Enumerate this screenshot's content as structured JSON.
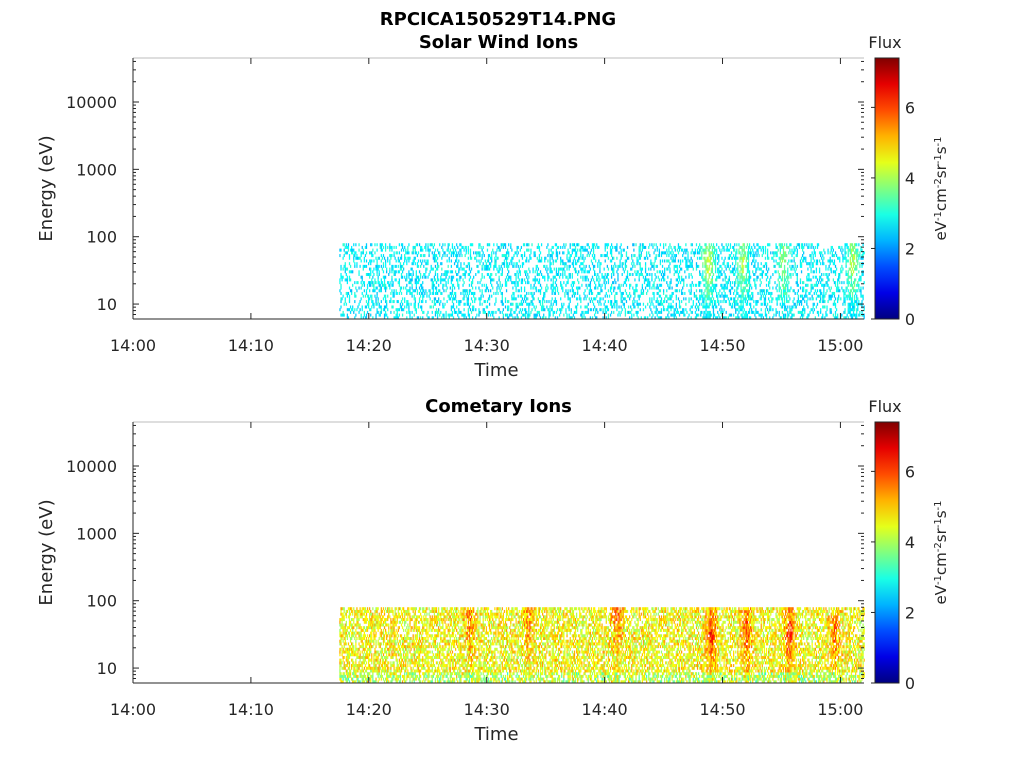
{
  "figure_title": "RPCICA150529T14.PNG",
  "chart_data": [
    {
      "type": "heatmap",
      "title": "Solar Wind Ions",
      "xlabel": "Time",
      "ylabel": "Energy (eV)",
      "xticks": [
        "14:00",
        "14:10",
        "14:20",
        "14:30",
        "14:40",
        "14:50",
        "15:00"
      ],
      "xlim": [
        "14:00",
        "15:02"
      ],
      "yscale": "log",
      "yticks": [
        "10",
        "100",
        "1000",
        "10000"
      ],
      "ylim": [
        6,
        45000
      ],
      "data_time_range": [
        "14:17:30",
        "15:02"
      ],
      "data_energy_range": [
        6,
        80
      ],
      "typical_flux": 2.7,
      "colorbar": {
        "label": "Flux",
        "units": "eV-1cm-2sr-1s-1",
        "ticks": [
          "0",
          "2",
          "4",
          "6"
        ],
        "range": [
          0,
          7.4
        ],
        "colormap": "jet"
      },
      "features": [
        {
          "time": "14:48:45",
          "energy_peak": 40,
          "flux": 4.5
        },
        {
          "time": "14:51:40",
          "energy_peak": 40,
          "flux": 4.2
        },
        {
          "time": "14:55:10",
          "energy_peak": 40,
          "flux": 4.0
        },
        {
          "time": "15:01:00",
          "energy_peak": 40,
          "flux": 4.2
        }
      ]
    },
    {
      "type": "heatmap",
      "title": "Cometary Ions",
      "xlabel": "Time",
      "ylabel": "Energy (eV)",
      "xticks": [
        "14:00",
        "14:10",
        "14:20",
        "14:30",
        "14:40",
        "14:50",
        "15:00"
      ],
      "xlim": [
        "14:00",
        "15:02"
      ],
      "yscale": "log",
      "yticks": [
        "10",
        "100",
        "1000",
        "10000"
      ],
      "ylim": [
        6,
        45000
      ],
      "data_time_range": [
        "14:17:30",
        "15:02"
      ],
      "data_energy_range": [
        6,
        80
      ],
      "typical_flux": 4.6,
      "colorbar": {
        "label": "Flux",
        "units": "eV-1cm-2sr-1s-1",
        "ticks": [
          "0",
          "2",
          "4",
          "6"
        ],
        "range": [
          0,
          7.4
        ],
        "colormap": "jet"
      },
      "features": [
        {
          "time": "14:28:30",
          "energy_peak": 50,
          "flux": 5.5
        },
        {
          "time": "14:33:30",
          "energy_peak": 55,
          "flux": 5.6
        },
        {
          "time": "14:41:00",
          "energy_peak": 60,
          "flux": 5.8
        },
        {
          "time": "14:49:00",
          "energy_peak": 30,
          "flux": 6.3
        },
        {
          "time": "14:52:00",
          "energy_peak": 30,
          "flux": 6.0
        },
        {
          "time": "14:55:40",
          "energy_peak": 30,
          "flux": 6.2
        },
        {
          "time": "14:59:30",
          "energy_peak": 30,
          "flux": 5.6
        }
      ]
    }
  ]
}
